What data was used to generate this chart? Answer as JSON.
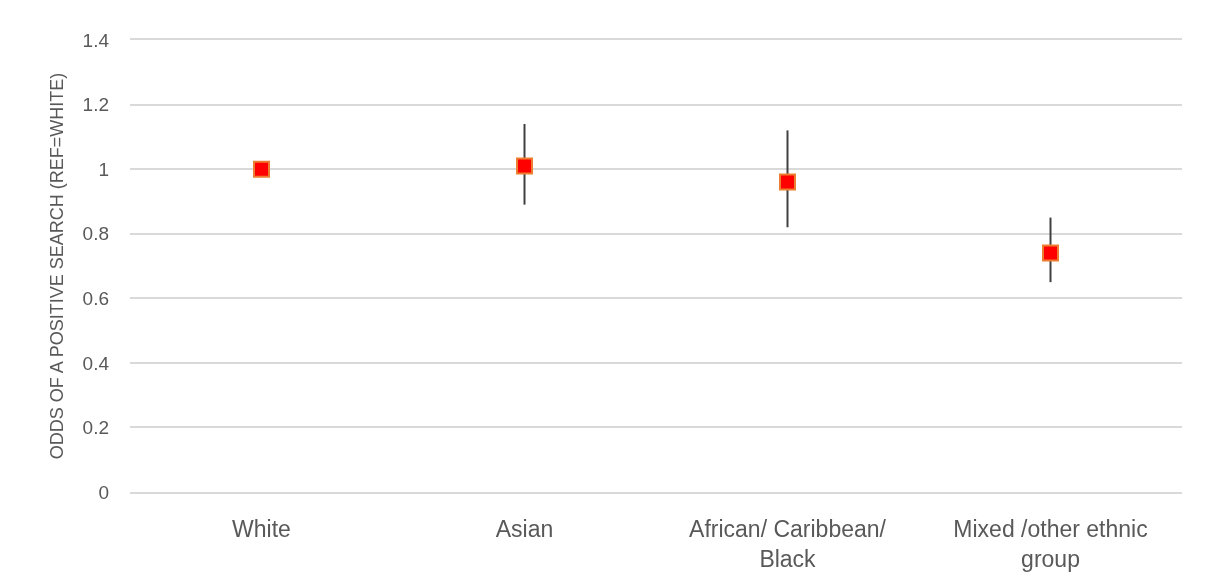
{
  "chart_data": {
    "type": "scatter",
    "ylabel": "ODDS OF A POSITIVE SEARCH (REF=WHITE)",
    "categories": [
      "White",
      "Asian",
      "African/ Caribbean/ Black",
      "Mixed /other ethnic group"
    ],
    "series": [
      {
        "color": "#ff0000",
        "values": [
          1.0,
          1.01,
          0.96,
          0.74
        ],
        "errors": [
          null,
          [
            0.89,
            1.14
          ],
          [
            0.82,
            1.12
          ],
          [
            0.65,
            0.85
          ]
        ]
      }
    ],
    "ylim": [
      0,
      1.4
    ],
    "yticks": [
      0,
      0.2,
      0.4,
      0.6,
      0.8,
      1,
      1.2,
      1.4
    ],
    "grid": "y",
    "marker": "square"
  }
}
